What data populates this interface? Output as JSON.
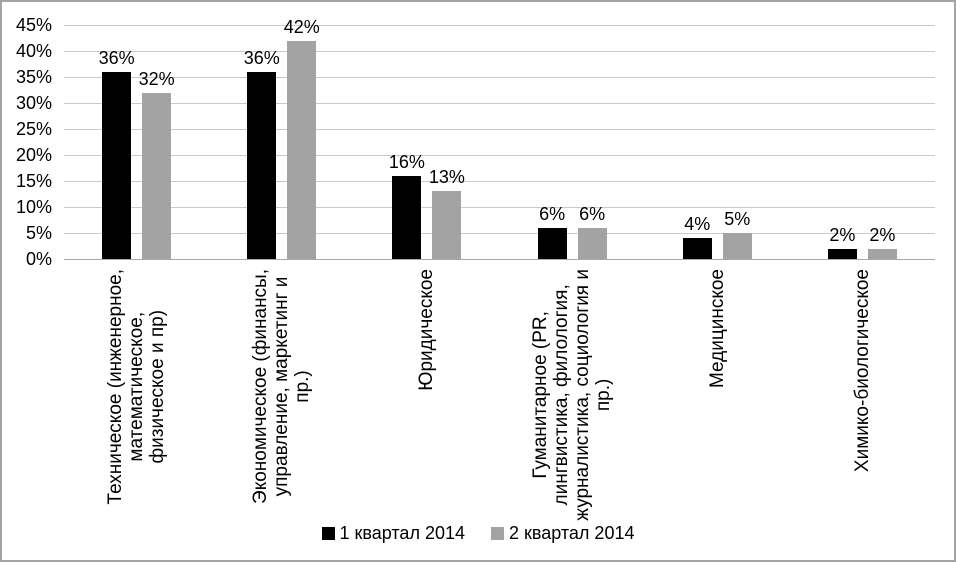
{
  "chart_data": {
    "type": "bar",
    "categories": [
      "Техническое (инженерное, математическое, физическое и пр)",
      "Экономическое (финансы, управление, маркетинг и пр.)",
      "Юридическое",
      "Гуманитарное (PR, лингвистика, филология, журналистика, социология и пр.)",
      "Медицинское",
      "Химико-биологическое"
    ],
    "category_lines": [
      [
        "Техническое (инженерное,",
        "математическое,",
        "физическое и пр)"
      ],
      [
        "Экономическое (финансы,",
        "управление, маркетинг и",
        "пр.)"
      ],
      [
        "Юридическое"
      ],
      [
        "Гуманитарное (PR,",
        "лингвистика, филология,",
        "журналистика, социология и",
        "пр.)"
      ],
      [
        "Медицинское"
      ],
      [
        "Химико-биологическое"
      ]
    ],
    "series": [
      {
        "name": "1 квартал 2014",
        "color": "#000000",
        "values": [
          36,
          36,
          16,
          6,
          4,
          2
        ]
      },
      {
        "name": "2 квартал 2014",
        "color": "#a3a3a3",
        "values": [
          32,
          42,
          13,
          6,
          5,
          2
        ]
      }
    ],
    "data_label_suffix": "%",
    "y_axis": {
      "min": 0,
      "max": 45,
      "ticks": [
        45,
        40,
        35,
        30,
        25,
        20,
        15,
        10,
        5,
        0
      ],
      "tick_suffix": "%"
    },
    "grid": true,
    "legend_position": "bottom",
    "colors": {
      "bar_series_1": "#000000",
      "bar_series_2": "#a3a3a3",
      "gridline": "#c9c9c9",
      "axis_line": "#a8a8a8",
      "frame_border": "#a3a3a3",
      "background": "#ffffff",
      "text": "#000000"
    }
  }
}
